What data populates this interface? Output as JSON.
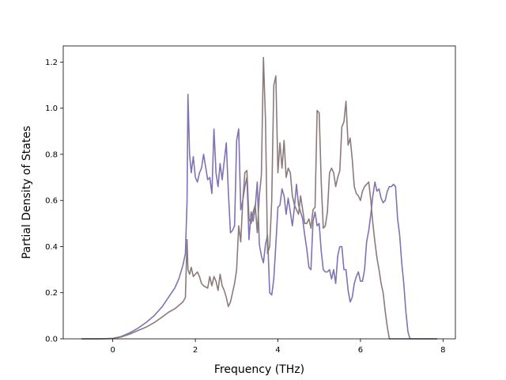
{
  "chart_data": {
    "type": "line",
    "title": "",
    "xlabel": "Frequency (THz)",
    "ylabel": "Partial Density of States",
    "xlim": [
      -1.2,
      8.3
    ],
    "ylim": [
      0.0,
      1.27
    ],
    "xticks": [
      0,
      2,
      4,
      6,
      8
    ],
    "xtick_labels": [
      "0",
      "2",
      "4",
      "6",
      "8"
    ],
    "yticks": [
      0.0,
      0.2,
      0.4,
      0.6,
      0.8,
      1.0,
      1.2
    ],
    "ytick_labels": [
      "0.0",
      "0.2",
      "0.4",
      "0.6",
      "0.8",
      "1.0",
      "1.2"
    ],
    "grid": false,
    "legend": false,
    "series": [
      {
        "color": "#8172b3",
        "x": [
          -0.75,
          -0.3,
          0.0,
          0.2,
          0.4,
          0.6,
          0.8,
          1.0,
          1.2,
          1.35,
          1.5,
          1.6,
          1.7,
          1.76,
          1.8,
          1.82,
          1.86,
          1.9,
          1.95,
          2.0,
          2.05,
          2.1,
          2.15,
          2.2,
          2.3,
          2.35,
          2.4,
          2.45,
          2.5,
          2.55,
          2.6,
          2.65,
          2.7,
          2.75,
          2.8,
          2.85,
          2.9,
          2.95,
          3.0,
          3.05,
          3.1,
          3.15,
          3.2,
          3.25,
          3.3,
          3.35,
          3.4,
          3.45,
          3.5,
          3.55,
          3.6,
          3.65,
          3.7,
          3.75,
          3.8,
          3.85,
          3.9,
          3.95,
          4.0,
          4.05,
          4.1,
          4.15,
          4.2,
          4.25,
          4.3,
          4.35,
          4.4,
          4.45,
          4.5,
          4.55,
          4.6,
          4.65,
          4.7,
          4.75,
          4.8,
          4.85,
          4.9,
          4.95,
          5.0,
          5.05,
          5.1,
          5.15,
          5.2,
          5.25,
          5.3,
          5.35,
          5.4,
          5.45,
          5.5,
          5.55,
          5.6,
          5.65,
          5.7,
          5.75,
          5.8,
          5.85,
          5.9,
          5.95,
          6.0,
          6.05,
          6.1,
          6.15,
          6.2,
          6.25,
          6.3,
          6.35,
          6.4,
          6.45,
          6.5,
          6.55,
          6.6,
          6.65,
          6.7,
          6.75,
          6.8,
          6.85,
          6.9,
          6.95,
          7.0,
          7.05,
          7.1,
          7.15,
          7.2,
          7.4,
          7.85
        ],
        "y": [
          0.0,
          0.0,
          0.002,
          0.01,
          0.025,
          0.045,
          0.07,
          0.1,
          0.14,
          0.18,
          0.22,
          0.26,
          0.32,
          0.37,
          0.6,
          1.06,
          0.8,
          0.72,
          0.79,
          0.7,
          0.68,
          0.72,
          0.74,
          0.8,
          0.69,
          0.7,
          0.63,
          0.91,
          0.72,
          0.66,
          0.76,
          0.69,
          0.77,
          0.85,
          0.64,
          0.46,
          0.47,
          0.49,
          0.86,
          0.91,
          0.56,
          0.6,
          0.66,
          0.7,
          0.43,
          0.55,
          0.51,
          0.57,
          0.68,
          0.41,
          0.36,
          0.33,
          0.41,
          0.45,
          0.2,
          0.19,
          0.26,
          0.41,
          0.57,
          0.58,
          0.65,
          0.62,
          0.54,
          0.61,
          0.55,
          0.49,
          0.57,
          0.67,
          0.58,
          0.55,
          0.52,
          0.45,
          0.39,
          0.31,
          0.3,
          0.51,
          0.55,
          0.49,
          0.5,
          0.38,
          0.3,
          0.29,
          0.29,
          0.3,
          0.26,
          0.3,
          0.24,
          0.36,
          0.4,
          0.4,
          0.3,
          0.3,
          0.21,
          0.16,
          0.18,
          0.24,
          0.27,
          0.29,
          0.25,
          0.25,
          0.3,
          0.42,
          0.47,
          0.54,
          0.62,
          0.68,
          0.64,
          0.65,
          0.61,
          0.59,
          0.6,
          0.64,
          0.66,
          0.66,
          0.67,
          0.66,
          0.52,
          0.45,
          0.33,
          0.24,
          0.12,
          0.03,
          0.0,
          0.0,
          0.0
        ]
      },
      {
        "color": "#8c7b7c",
        "x": [
          -0.75,
          -0.3,
          0.0,
          0.2,
          0.4,
          0.6,
          0.8,
          1.0,
          1.2,
          1.35,
          1.5,
          1.6,
          1.7,
          1.76,
          1.8,
          1.82,
          1.86,
          1.9,
          1.95,
          2.0,
          2.05,
          2.1,
          2.15,
          2.2,
          2.3,
          2.35,
          2.4,
          2.45,
          2.5,
          2.55,
          2.6,
          2.65,
          2.7,
          2.75,
          2.8,
          2.85,
          2.9,
          2.95,
          3.0,
          3.05,
          3.1,
          3.15,
          3.2,
          3.25,
          3.3,
          3.35,
          3.4,
          3.45,
          3.5,
          3.55,
          3.6,
          3.65,
          3.7,
          3.75,
          3.8,
          3.85,
          3.9,
          3.95,
          4.0,
          4.05,
          4.1,
          4.15,
          4.2,
          4.25,
          4.3,
          4.35,
          4.4,
          4.45,
          4.5,
          4.55,
          4.6,
          4.65,
          4.7,
          4.75,
          4.8,
          4.85,
          4.9,
          4.95,
          5.0,
          5.05,
          5.1,
          5.15,
          5.2,
          5.25,
          5.3,
          5.35,
          5.4,
          5.45,
          5.5,
          5.55,
          5.6,
          5.65,
          5.7,
          5.75,
          5.8,
          5.85,
          5.9,
          5.95,
          6.0,
          6.05,
          6.1,
          6.15,
          6.2,
          6.25,
          6.3,
          6.35,
          6.4,
          6.45,
          6.5,
          6.55,
          6.6,
          6.65,
          6.7,
          6.75,
          6.8,
          6.85,
          6.9,
          6.95,
          7.0,
          7.05,
          7.1,
          7.15,
          7.2,
          7.4,
          7.85
        ],
        "y": [
          0.0,
          0.0,
          0.001,
          0.008,
          0.02,
          0.035,
          0.05,
          0.07,
          0.095,
          0.115,
          0.13,
          0.145,
          0.16,
          0.18,
          0.43,
          0.3,
          0.28,
          0.31,
          0.27,
          0.28,
          0.29,
          0.27,
          0.24,
          0.23,
          0.22,
          0.27,
          0.23,
          0.27,
          0.25,
          0.21,
          0.28,
          0.23,
          0.21,
          0.18,
          0.14,
          0.16,
          0.2,
          0.24,
          0.3,
          0.49,
          0.42,
          0.6,
          0.72,
          0.73,
          0.52,
          0.5,
          0.55,
          0.58,
          0.46,
          0.62,
          0.71,
          1.22,
          0.95,
          0.37,
          0.4,
          0.6,
          1.1,
          1.14,
          0.72,
          0.85,
          0.74,
          0.86,
          0.7,
          0.74,
          0.72,
          0.62,
          0.58,
          0.56,
          0.54,
          0.62,
          0.56,
          0.5,
          0.5,
          0.52,
          0.48,
          0.56,
          0.57,
          0.99,
          0.98,
          0.68,
          0.48,
          0.49,
          0.55,
          0.72,
          0.74,
          0.72,
          0.66,
          0.7,
          0.73,
          0.92,
          0.94,
          1.03,
          0.84,
          0.87,
          0.78,
          0.66,
          0.63,
          0.62,
          0.6,
          0.64,
          0.66,
          0.67,
          0.68,
          0.6,
          0.5,
          0.42,
          0.35,
          0.3,
          0.24,
          0.2,
          0.12,
          0.05,
          0.0,
          0.0,
          0.0,
          0.0,
          0.0,
          0.0,
          0.0,
          0.0,
          0.0,
          0.0,
          0.0,
          0.0,
          0.0
        ]
      }
    ]
  }
}
